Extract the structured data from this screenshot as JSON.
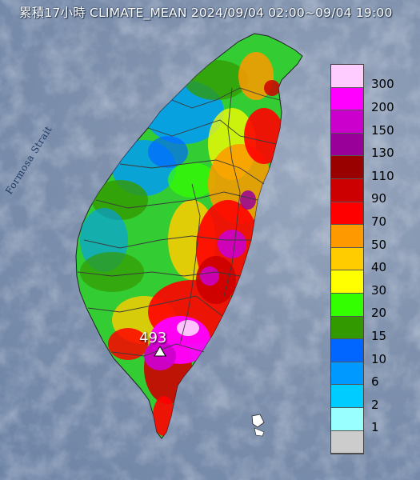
{
  "title": "累積17小時 CLIMATE_MEAN 2024/09/04 02:00~09/04 19:00",
  "sea_label": "Formosa Strait",
  "max_value_label": "493",
  "legend": {
    "items": [
      {
        "label": "300",
        "color": "#ffccff"
      },
      {
        "label": "200",
        "color": "#ff00ff"
      },
      {
        "label": "150",
        "color": "#cc00cc"
      },
      {
        "label": "130",
        "color": "#990099"
      },
      {
        "label": "110",
        "color": "#990000"
      },
      {
        "label": "90",
        "color": "#cc0000"
      },
      {
        "label": "70",
        "color": "#ff0000"
      },
      {
        "label": "50",
        "color": "#ff9900"
      },
      {
        "label": "40",
        "color": "#ffcc00"
      },
      {
        "label": "30",
        "color": "#ffff00"
      },
      {
        "label": "20",
        "color": "#33ff00"
      },
      {
        "label": "15",
        "color": "#339900"
      },
      {
        "label": "10",
        "color": "#0066ff"
      },
      {
        "label": "6",
        "color": "#0099ff"
      },
      {
        "label": "2",
        "color": "#00ccff"
      },
      {
        "label": "1",
        "color": "#99ffff"
      },
      {
        "label": "",
        "color": "#cccccc"
      }
    ]
  },
  "colors": {
    "sea": "#7f91ad",
    "county_border": "#3a3a3a"
  },
  "icons": {
    "max_marker": "triangle-marker-icon"
  }
}
